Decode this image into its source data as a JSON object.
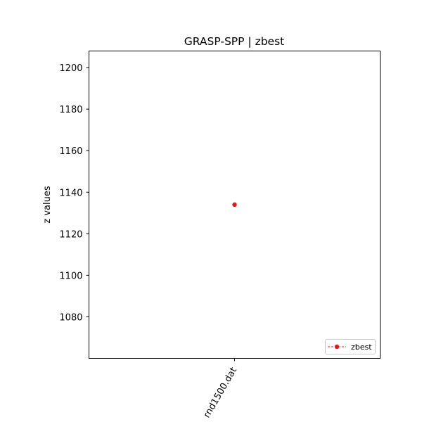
{
  "chart_data": {
    "type": "scatter",
    "title": "GRASP-SPP | zbest",
    "xlabel": "",
    "ylabel": "z values",
    "categories": [
      "rnd1500.dat"
    ],
    "series": [
      {
        "name": "zbest",
        "values": [
          1134
        ],
        "color": "#e41a1c",
        "line_style": "dashed",
        "marker": "circle"
      }
    ],
    "ylim": [
      1060,
      1208
    ],
    "yticks": [
      1080,
      1100,
      1120,
      1140,
      1160,
      1180,
      1200
    ],
    "grid": false,
    "legend_position": "lower-right",
    "xtick_rotation": "slanted"
  }
}
